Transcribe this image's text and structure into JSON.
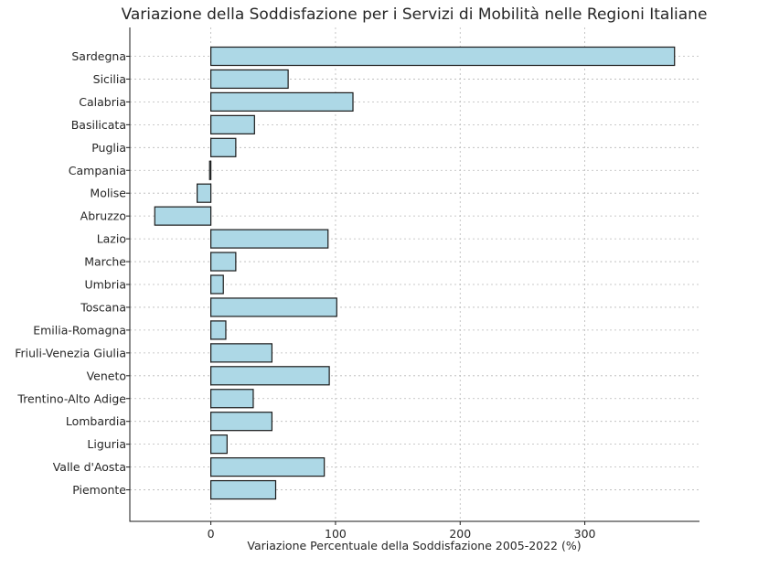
{
  "chart_data": {
    "type": "bar",
    "orientation": "horizontal",
    "title": "Variazione della Soddisfazione per i Servizi di Mobilità nelle Regioni Italiane",
    "xlabel": "Variazione Percentuale della Soddisfazione 2005-2022 (%)",
    "ylabel": "",
    "xlim": [
      -65,
      392
    ],
    "xticks": [
      0,
      100,
      200,
      300
    ],
    "grid": true,
    "bar_color": "#add8e6",
    "edge_color": "#1a1a1a",
    "categories": [
      "Sardegna",
      "Sicilia",
      "Calabria",
      "Basilicata",
      "Puglia",
      "Campania",
      "Molise",
      "Abruzzo",
      "Lazio",
      "Marche",
      "Umbria",
      "Toscana",
      "Emilia-Romagna",
      "Friuli-Venezia Giulia",
      "Veneto",
      "Trentino-Alto Adige",
      "Lombardia",
      "Liguria",
      "Valle d'Aosta",
      "Piemonte"
    ],
    "values": [
      372,
      62,
      114,
      35,
      20,
      -1,
      -11,
      -45,
      94,
      20,
      10,
      101,
      12,
      49,
      95,
      34,
      49,
      13,
      91,
      52
    ]
  }
}
